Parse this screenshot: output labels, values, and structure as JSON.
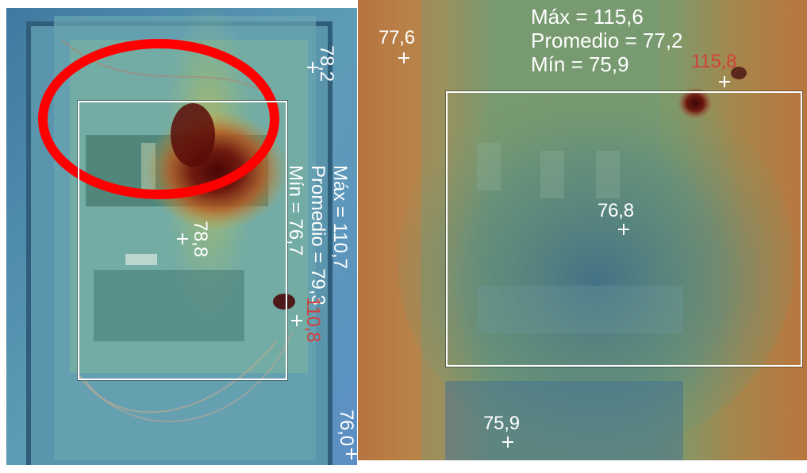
{
  "left_image": {
    "roi_stats": {
      "max": "Máx = 110,7",
      "avg": "Promedio = 79,3",
      "min": "Mín = 76,7"
    },
    "spots": [
      {
        "id": "top-right",
        "value": "78,2"
      },
      {
        "id": "center",
        "value": "78,8"
      },
      {
        "id": "hot",
        "value": "110,8"
      },
      {
        "id": "bottom-right",
        "value": "76,0"
      }
    ],
    "highlight_color": "#ff0000"
  },
  "right_image": {
    "roi_stats": {
      "max": "Máx = 115,6",
      "avg": "Promedio = 77,2",
      "min": "Mín = 75,9"
    },
    "spots": [
      {
        "id": "top-left",
        "value": "77,6"
      },
      {
        "id": "hot",
        "value": "115,8"
      },
      {
        "id": "center",
        "value": "76,8"
      },
      {
        "id": "bottom",
        "value": "75,9"
      }
    ]
  },
  "colors": {
    "label": "#ffffff",
    "hot_label": "#d1413b"
  }
}
